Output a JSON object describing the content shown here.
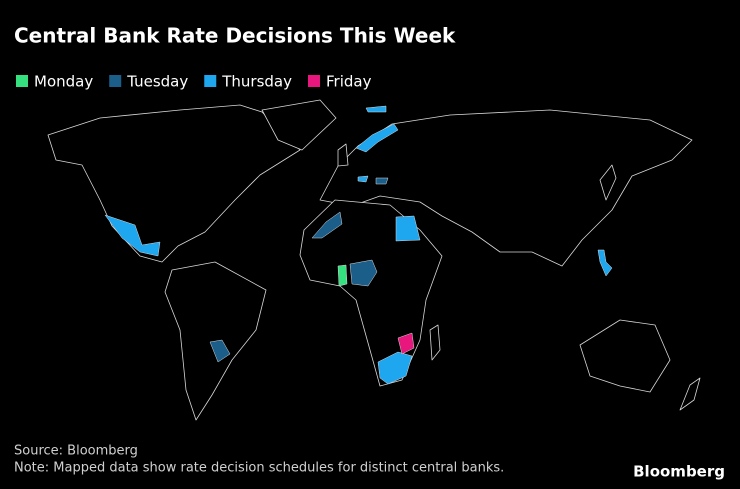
{
  "title": "Central Bank Rate Decisions This Week",
  "legend": [
    {
      "name": "Monday",
      "color": "#35e07f"
    },
    {
      "name": "Tuesday",
      "color": "#1b5e8a"
    },
    {
      "name": "Thursday",
      "color": "#1ea6ef"
    },
    {
      "name": "Friday",
      "color": "#e8177e"
    }
  ],
  "source": "Source: Bloomberg",
  "note": "Note: Mapped data show rate decision schedules for distinct central banks.",
  "brand": "Bloomberg"
}
